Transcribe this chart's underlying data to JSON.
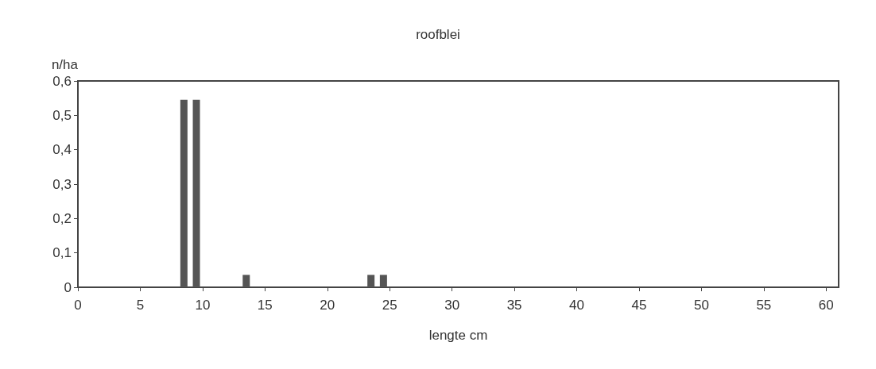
{
  "chart_data": {
    "type": "bar",
    "title": "roofblei",
    "xlabel": "lengte cm",
    "ylabel": "n/ha",
    "x": [
      8.5,
      9.5,
      13.5,
      23.5,
      24.5
    ],
    "values": [
      0.545,
      0.545,
      0.036,
      0.036,
      0.036
    ],
    "color": "#555555",
    "xlim": [
      0,
      61
    ],
    "xticks": [
      0,
      5,
      10,
      15,
      20,
      25,
      30,
      35,
      40,
      45,
      50,
      55,
      60
    ],
    "ylim": [
      0,
      0.6
    ],
    "yticks": [
      {
        "value": 0,
        "label": "0"
      },
      {
        "value": 0.1,
        "label": "0,1"
      },
      {
        "value": 0.2,
        "label": "0,2"
      },
      {
        "value": 0.3,
        "label": "0,3"
      },
      {
        "value": 0.4,
        "label": "0,4"
      },
      {
        "value": 0.5,
        "label": "0,5"
      },
      {
        "value": 0.6,
        "label": "0,6"
      }
    ],
    "grid": false
  }
}
